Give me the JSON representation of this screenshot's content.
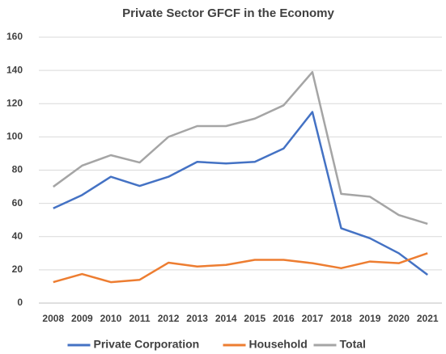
{
  "chart_data": {
    "type": "line",
    "title": "Private Sector GFCF in the Economy",
    "categories": [
      "2008",
      "2009",
      "2010",
      "2011",
      "2012",
      "2013",
      "2014",
      "2015",
      "2016",
      "2017",
      "2018",
      "2019",
      "2020",
      "2021"
    ],
    "series": [
      {
        "name": "Private Corporation",
        "color": "#4472c4",
        "values": [
          57,
          65,
          76,
          70.5,
          76,
          85,
          84,
          85,
          93,
          115,
          45,
          39,
          30,
          17
        ]
      },
      {
        "name": "Household",
        "color": "#ed7d31",
        "values": [
          12.6,
          17.5,
          12.6,
          14,
          24.3,
          22,
          23,
          26,
          26,
          24,
          21,
          25,
          24,
          30
        ]
      },
      {
        "name": "Total",
        "color": "#a5a5a5",
        "values": [
          70,
          82.7,
          89,
          84.6,
          100,
          106.5,
          106.5,
          111,
          119,
          139,
          65.7,
          64,
          53,
          47.7
        ]
      }
    ],
    "ylim": [
      0,
      160
    ],
    "yticks": [
      0,
      20,
      40,
      60,
      80,
      100,
      120,
      140,
      160
    ],
    "grid": true,
    "legend": "bottom"
  }
}
